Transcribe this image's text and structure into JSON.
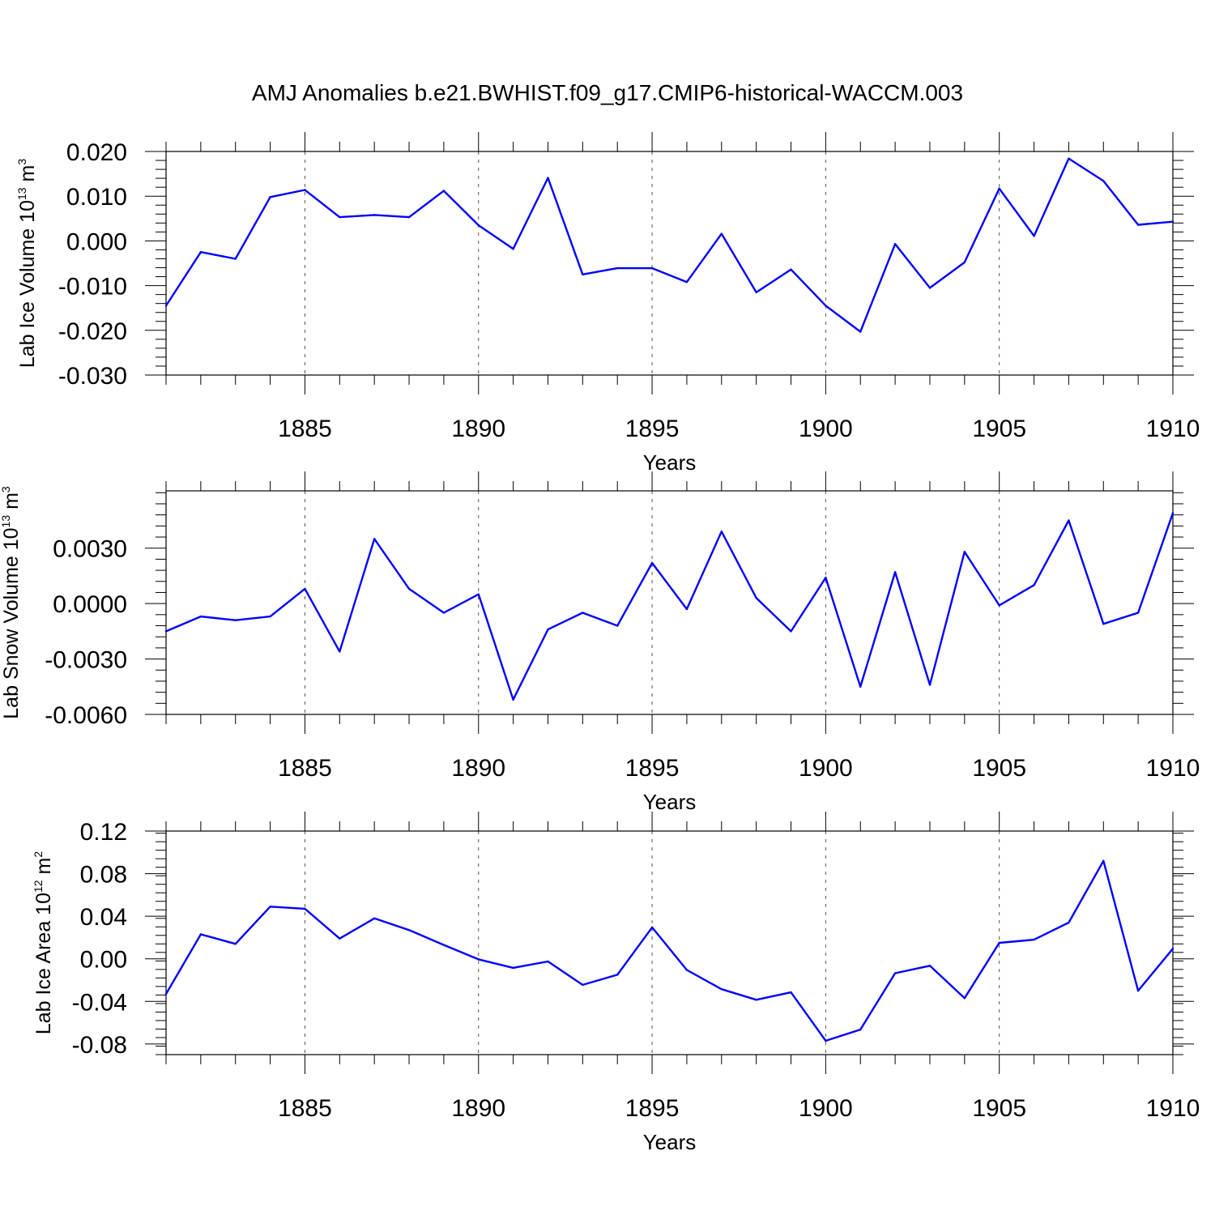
{
  "title": "AMJ Anomalies b.e21.BWHIST.f09_g17.CMIP6-historical-WACCM.003",
  "line_color": "#0000ff",
  "chart_data": [
    {
      "type": "line",
      "ylabel": {
        "text": "Lab Ice Volume 10",
        "exp": "13",
        "unit": " m",
        "unit_exp": "3"
      },
      "xlabel": "Years",
      "xlim": [
        1881,
        1910
      ],
      "ylim": [
        -0.03,
        0.02
      ],
      "x_ticks": [
        1885,
        1890,
        1895,
        1900,
        1905,
        1910
      ],
      "y_ticks": [
        "-0.030",
        "-0.020",
        "-0.010",
        "0.000",
        "0.010",
        "0.020"
      ],
      "grid": "vertical dashed at major x ticks",
      "x": [
        1881,
        1882,
        1883,
        1884,
        1885,
        1886,
        1887,
        1888,
        1889,
        1890,
        1891,
        1892,
        1893,
        1894,
        1895,
        1896,
        1897,
        1898,
        1899,
        1900,
        1901,
        1902,
        1903,
        1904,
        1905,
        1906,
        1907,
        1908,
        1909,
        1910
      ],
      "values": [
        -0.0145,
        -0.0025,
        -0.004,
        0.0098,
        0.0114,
        0.0053,
        0.0058,
        0.0053,
        0.0112,
        0.0035,
        -0.0018,
        0.0141,
        -0.0075,
        -0.0061,
        -0.0061,
        -0.0092,
        0.0016,
        -0.0115,
        -0.0064,
        -0.0145,
        -0.0203,
        -0.0007,
        -0.0105,
        -0.0048,
        0.0117,
        0.0011,
        0.0184,
        0.0134,
        0.0036,
        0.0043
      ]
    },
    {
      "type": "line",
      "ylabel": {
        "text": "Lab Snow Volume 10",
        "exp": "13",
        "unit": " m",
        "unit_exp": "3"
      },
      "xlabel": "Years",
      "xlim": [
        1881,
        1910
      ],
      "ylim": [
        -0.006,
        0.0061
      ],
      "x_ticks": [
        1885,
        1890,
        1895,
        1900,
        1905,
        1910
      ],
      "y_ticks": [
        "-0.0060",
        "-0.0030",
        "0.0000",
        "0.0030"
      ],
      "grid": "vertical dashed at major x ticks",
      "x": [
        1881,
        1882,
        1883,
        1884,
        1885,
        1886,
        1887,
        1888,
        1889,
        1890,
        1891,
        1892,
        1893,
        1894,
        1895,
        1896,
        1897,
        1898,
        1899,
        1900,
        1901,
        1902,
        1903,
        1904,
        1905,
        1906,
        1907,
        1908,
        1909,
        1910
      ],
      "values": [
        -0.0015,
        -0.0007,
        -0.0009,
        -0.0007,
        0.0008,
        -0.0026,
        0.0035,
        0.0008,
        -0.0005,
        0.0005,
        -0.0052,
        -0.0014,
        -0.0005,
        -0.0012,
        0.0022,
        -0.0003,
        0.0039,
        0.0003,
        -0.0015,
        0.0014,
        -0.0045,
        0.0017,
        -0.0044,
        0.0028,
        -0.0001,
        0.001,
        0.0045,
        -0.0011,
        -0.0005,
        0.0049
      ]
    },
    {
      "type": "line",
      "ylabel": {
        "text": "Lab Ice Area 10",
        "exp": "12",
        "unit": " m",
        "unit_exp": "2"
      },
      "xlabel": "Years",
      "xlim": [
        1881,
        1910
      ],
      "ylim": [
        -0.09,
        0.12
      ],
      "x_ticks": [
        1885,
        1890,
        1895,
        1900,
        1905,
        1910
      ],
      "y_ticks": [
        "-0.08",
        "-0.04",
        "0.00",
        "0.04",
        "0.08",
        "0.12"
      ],
      "grid": "vertical dashed at major x ticks",
      "x": [
        1881,
        1882,
        1883,
        1884,
        1885,
        1886,
        1887,
        1888,
        1889,
        1890,
        1891,
        1892,
        1893,
        1894,
        1895,
        1896,
        1897,
        1898,
        1899,
        1900,
        1901,
        1902,
        1903,
        1904,
        1905,
        1906,
        1907,
        1908,
        1909,
        1910
      ],
      "values": [
        -0.033,
        0.023,
        0.014,
        0.049,
        0.047,
        0.019,
        0.038,
        0.027,
        0.013,
        -0.0005,
        -0.0085,
        -0.0025,
        -0.0245,
        -0.015,
        0.0295,
        -0.0105,
        -0.0285,
        -0.0385,
        -0.0315,
        -0.077,
        -0.0665,
        -0.0135,
        -0.0065,
        -0.037,
        0.015,
        0.018,
        0.034,
        0.092,
        -0.03,
        0.0095
      ]
    }
  ]
}
